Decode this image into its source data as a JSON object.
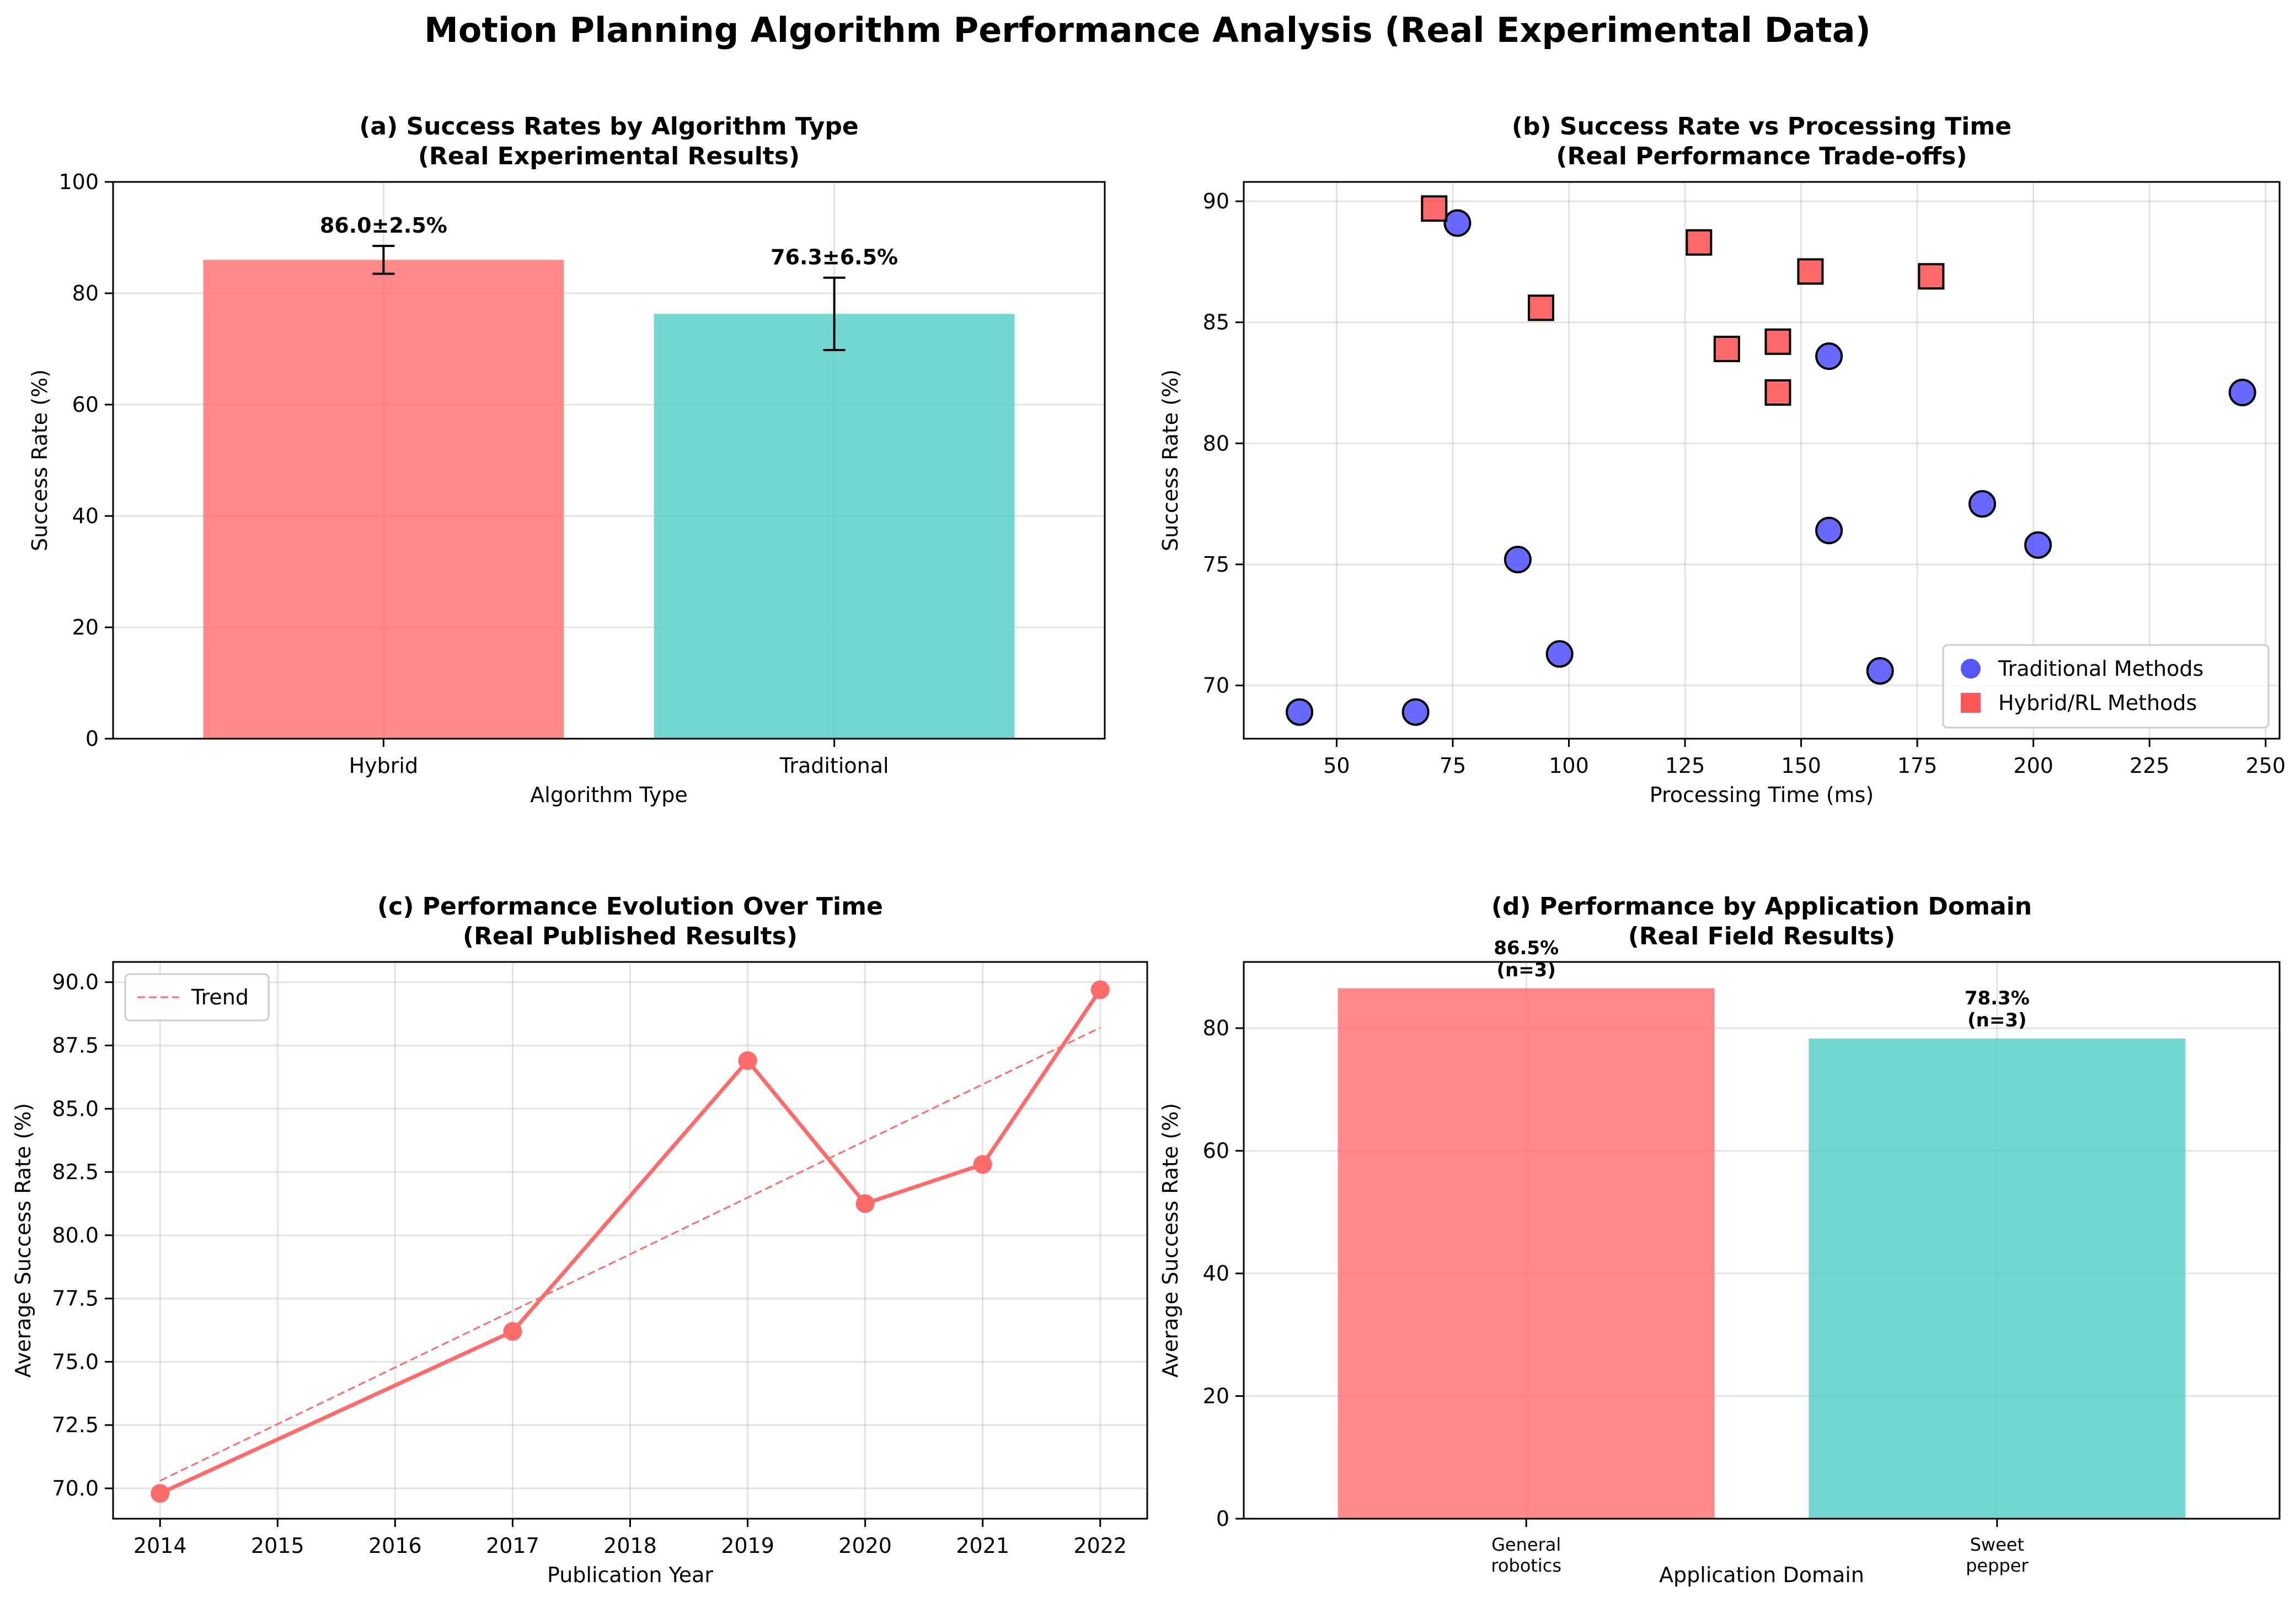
{
  "figure_title": "Motion Planning Algorithm Performance Analysis (Real Experimental Data)",
  "colors": {
    "red": "#ff6b6b",
    "teal": "#4ecdc4",
    "blue": "#4444ff",
    "red_marker": "#ff4444"
  },
  "chart_data": [
    {
      "id": "a",
      "type": "bar",
      "title": [
        "(a) Success Rates by Algorithm Type",
        "(Real Experimental Results)"
      ],
      "xlabel": "Algorithm Type",
      "ylabel": "Success Rate (%)",
      "ylim": [
        0,
        100
      ],
      "yticks": [
        0,
        20,
        40,
        60,
        80,
        100
      ],
      "categories": [
        "Hybrid",
        "Traditional"
      ],
      "values": [
        86.0,
        76.3
      ],
      "errors": [
        2.5,
        6.5
      ],
      "labels": [
        "86.0±2.5%",
        "76.3±6.5%"
      ],
      "grid": true
    },
    {
      "id": "b",
      "type": "scatter",
      "title": [
        "(b) Success Rate vs Processing Time",
        "(Real Performance Trade-offs)"
      ],
      "xlabel": "Processing Time (ms)",
      "ylabel": "Success Rate (%)",
      "xlim": [
        30,
        253
      ],
      "ylim": [
        67.8,
        90.8
      ],
      "xticks": [
        50,
        75,
        100,
        125,
        150,
        175,
        200,
        225,
        250
      ],
      "yticks": [
        70,
        75,
        80,
        85,
        90
      ],
      "legend_position": "lower-right",
      "grid": true,
      "series": [
        {
          "name": "Traditional Methods",
          "marker": "circle",
          "points": [
            [
              42,
              68.9
            ],
            [
              67,
              68.9
            ],
            [
              76,
              89.1
            ],
            [
              89,
              75.2
            ],
            [
              98,
              71.3
            ],
            [
              156,
              83.6
            ],
            [
              156,
              76.4
            ],
            [
              167,
              70.6
            ],
            [
              189,
              77.5
            ],
            [
              201,
              75.8
            ],
            [
              245,
              82.1
            ]
          ]
        },
        {
          "name": "Hybrid/RL Methods",
          "marker": "square",
          "points": [
            [
              71,
              89.7
            ],
            [
              94,
              85.6
            ],
            [
              128,
              88.3
            ],
            [
              134,
              83.9
            ],
            [
              145,
              84.2
            ],
            [
              145,
              82.1
            ],
            [
              152,
              87.1
            ],
            [
              178,
              86.9
            ]
          ]
        }
      ]
    },
    {
      "id": "c",
      "type": "line",
      "title": [
        "(c) Performance Evolution Over Time",
        "(Real Published Results)"
      ],
      "xlabel": "Publication Year",
      "ylabel": "Average Success Rate (%)",
      "xlim": [
        2013.6,
        2022.4
      ],
      "ylim": [
        68.8,
        90.8
      ],
      "xticks": [
        2014,
        2015,
        2016,
        2017,
        2018,
        2019,
        2020,
        2021,
        2022
      ],
      "yticks": [
        70.0,
        72.5,
        75.0,
        77.5,
        80.0,
        82.5,
        85.0,
        87.5,
        90.0
      ],
      "ytick_labels": [
        "70.0",
        "72.5",
        "75.0",
        "77.5",
        "80.0",
        "82.5",
        "85.0",
        "87.5",
        "90.0"
      ],
      "x": [
        2014,
        2017,
        2019,
        2020,
        2021,
        2022
      ],
      "y": [
        69.8,
        76.2,
        86.9,
        81.25,
        82.8,
        89.7
      ],
      "trend": {
        "name": "Trend",
        "x": [
          2014,
          2022
        ],
        "y": [
          70.3,
          88.2
        ]
      },
      "legend_position": "top-left",
      "grid": true
    },
    {
      "id": "d",
      "type": "bar",
      "title": [
        "(d) Performance by Application Domain",
        "(Real Field Results)"
      ],
      "xlabel": "Application Domain",
      "ylabel": "Average Success Rate (%)",
      "ylim": [
        0,
        90.8
      ],
      "yticks": [
        0,
        20,
        40,
        60,
        80
      ],
      "categories": [
        [
          "General",
          "robotics"
        ],
        [
          "Sweet",
          "pepper"
        ]
      ],
      "values": [
        86.5,
        78.3
      ],
      "labels": [
        [
          "86.5%",
          "(n=3)"
        ],
        [
          "78.3%",
          "(n=3)"
        ]
      ],
      "grid": true
    }
  ]
}
